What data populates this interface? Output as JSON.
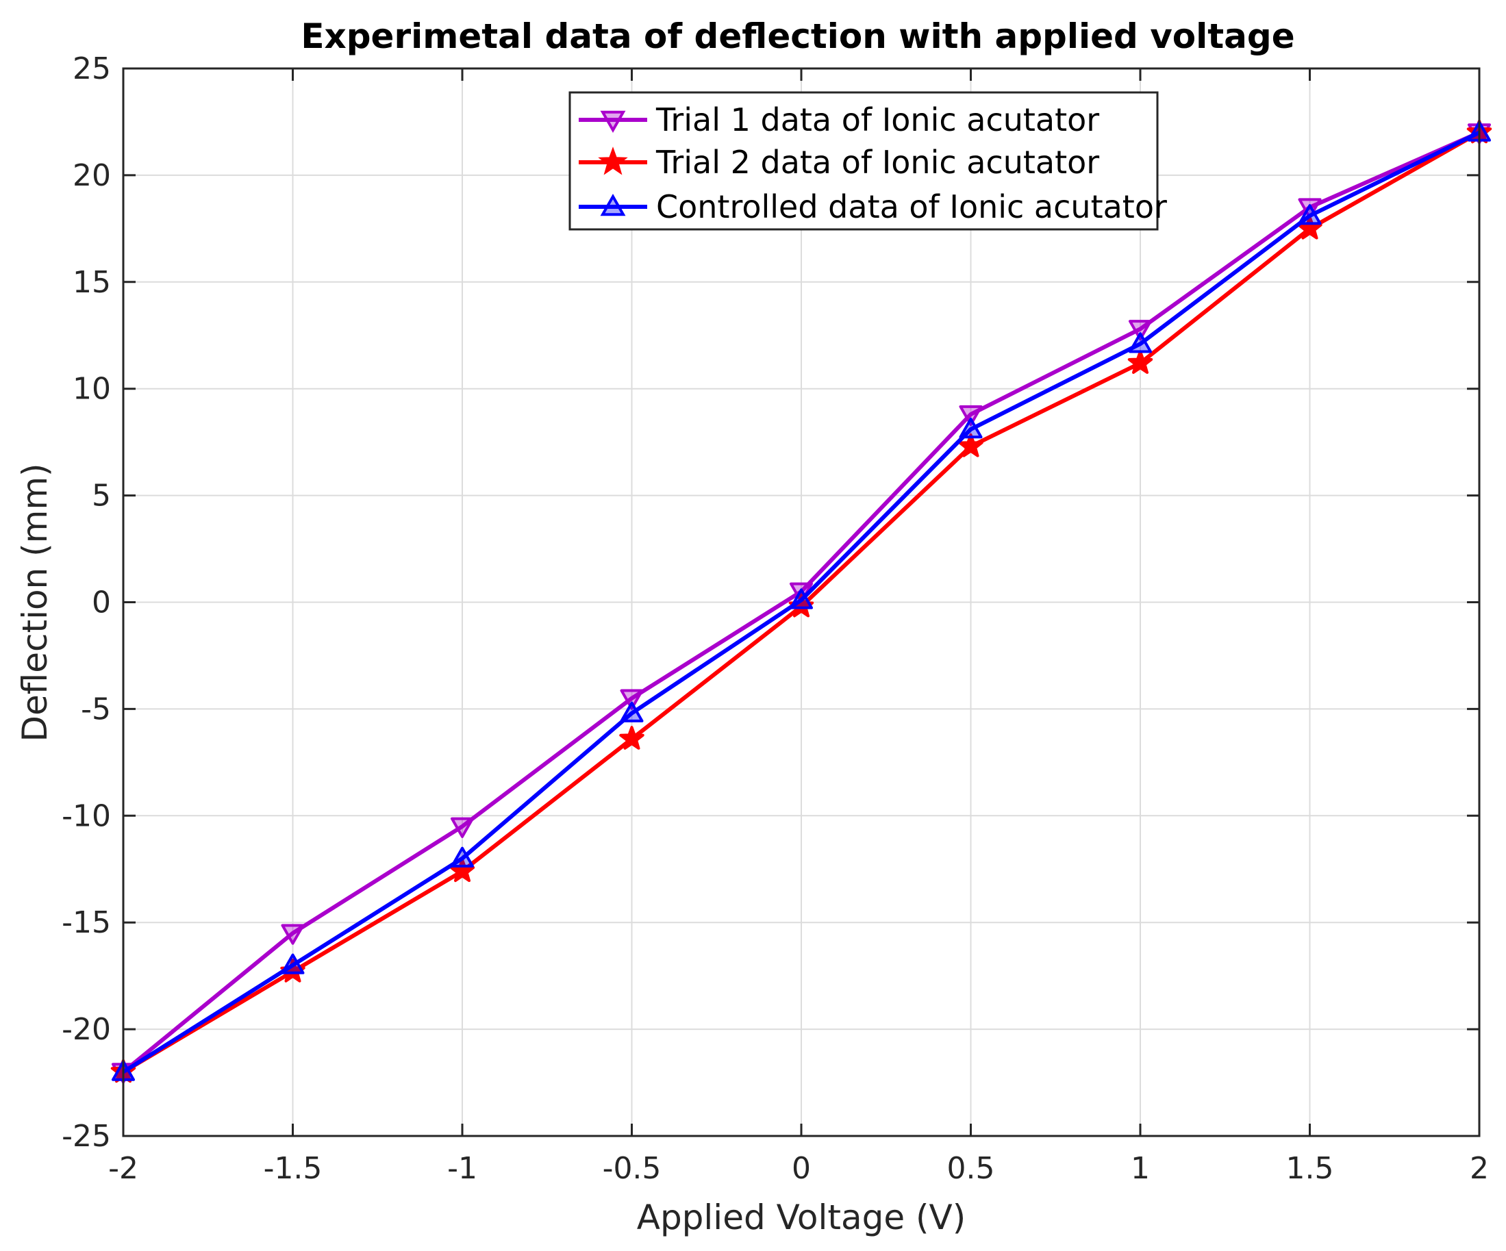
{
  "chart_data": {
    "type": "line",
    "title": "Experimetal data of deflection with applied voltage",
    "xlabel": "Applied Voltage (V)",
    "ylabel": "Deflection (mm)",
    "xlim": [
      -2,
      2
    ],
    "ylim": [
      -25,
      25
    ],
    "grid": true,
    "legend_position": "top-center",
    "x": [
      -2,
      -1.5,
      -1,
      -0.5,
      0,
      0.5,
      1,
      1.5,
      2
    ],
    "x_tick_labels": [
      "-2",
      "-1.5",
      "-1",
      "-0.5",
      "0",
      "0.5",
      "1",
      "1.5",
      "2"
    ],
    "y_ticks": [
      25,
      20,
      15,
      10,
      5,
      0,
      -5,
      -10,
      -15,
      -20,
      -25
    ],
    "y_tick_labels": [
      "25",
      "20",
      "15",
      "10",
      "5",
      "0",
      "-5",
      "-10",
      "-15",
      "-20",
      "-25"
    ],
    "series": [
      {
        "name": "Trial 1 data of Ionic acutator",
        "color": "#aa00cc",
        "marker": "triangle-down",
        "values": [
          -22,
          -15.5,
          -10.5,
          -4.5,
          0.5,
          8.8,
          12.8,
          18.5,
          22
        ]
      },
      {
        "name": "Trial 2 data of Ionic acutator",
        "color": "#ff0000",
        "marker": "star",
        "values": [
          -22,
          -17.3,
          -12.6,
          -6.4,
          -0.2,
          7.3,
          11.2,
          17.5,
          22
        ]
      },
      {
        "name": "Controlled data of Ionic acutator",
        "color": "#0000ff",
        "marker": "triangle-up",
        "values": [
          -22,
          -17,
          -12,
          -5.2,
          0.1,
          8.1,
          12.1,
          18.1,
          22
        ]
      }
    ]
  }
}
